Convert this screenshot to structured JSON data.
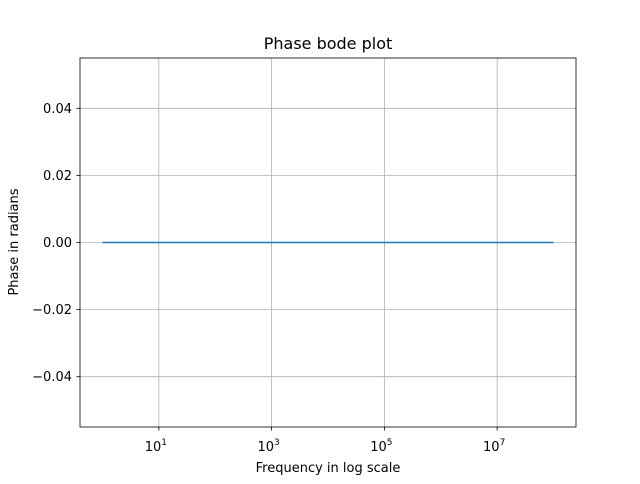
{
  "chart_data": {
    "type": "line",
    "title": "Phase bode plot",
    "xlabel": "Frequency in log scale",
    "ylabel": "Phase in radians",
    "xscale": "log",
    "xlim": [
      0.4,
      250000000
    ],
    "ylim": [
      -0.055,
      0.055
    ],
    "grid": true,
    "line_color": "#1f77b4",
    "x_ticks": [
      {
        "value": 10,
        "base": "10",
        "exp": "1"
      },
      {
        "value": 1000,
        "base": "10",
        "exp": "3"
      },
      {
        "value": 100000,
        "base": "10",
        "exp": "5"
      },
      {
        "value": 10000000,
        "base": "10",
        "exp": "7"
      }
    ],
    "y_ticks": [
      {
        "value": 0.04,
        "label": "0.04"
      },
      {
        "value": 0.02,
        "label": "0.02"
      },
      {
        "value": 0.0,
        "label": "0.00"
      },
      {
        "value": -0.02,
        "label": "−0.02"
      },
      {
        "value": -0.04,
        "label": "−0.04"
      }
    ],
    "series": [
      {
        "x": [
          1,
          100000000
        ],
        "values": [
          0,
          0
        ]
      }
    ]
  }
}
